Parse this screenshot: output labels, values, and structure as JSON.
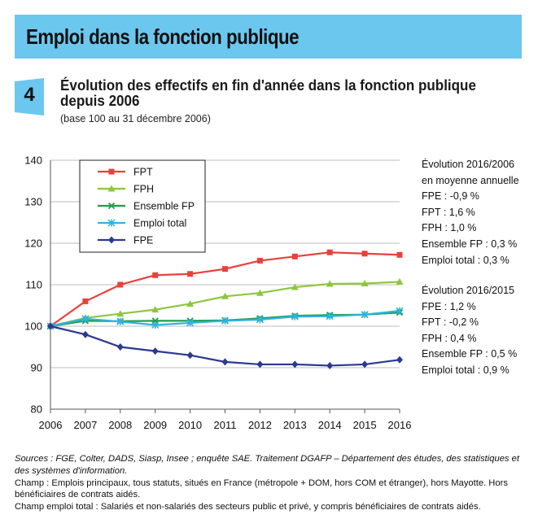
{
  "banner": {
    "title": "Emploi dans la fonction publique"
  },
  "figure": {
    "number": "4",
    "title": "Évolution des effectifs en fin d'année dans la fonction publique depuis 2006",
    "subtitle": "(base 100 au 31 décembre 2006)"
  },
  "notes": {
    "block1": [
      "Évolution 2016/2006",
      "en moyenne annuelle",
      "FPE : -0,9 %",
      "FPT : 1,6 %",
      "FPH : 1,0 %",
      "Ensemble FP : 0,3 %",
      "Emploi total : 0,3 %"
    ],
    "block2": [
      "Évolution 2016/2015",
      "FPE : 1,2 %",
      "FPT : -0,2 %",
      "FPH : 0,4 %",
      "Ensemble FP : 0,5 %",
      "Emploi total : 0,9 %"
    ]
  },
  "sources": {
    "line1": "Sources : FGE, Colter, DADS, Siasp, Insee ; enquête SAE. Traitement DGAFP – Département des études, des statistiques et des systèmes d'information.",
    "line2": "Champ : Emplois principaux, tous statuts, situés en France (métropole + DOM, hors COM et étranger), hors Mayotte. Hors bénéficiaires de contrats aidés.",
    "line3": "Champ emploi total : Salariés et non-salariés des secteurs public et privé, y compris bénéficiaires de contrats aidés."
  },
  "colors": {
    "banner": "#6cc7ee",
    "badge": "#6cc7ee",
    "FPT": "#e8413c",
    "FPH": "#8dc63f",
    "Ensemble FP": "#1e9e4a",
    "Emploi total": "#2fb3e0",
    "FPE": "#2b3990"
  },
  "chart_data": {
    "type": "line",
    "x": [
      2006,
      2007,
      2008,
      2009,
      2010,
      2011,
      2012,
      2013,
      2014,
      2015,
      2016
    ],
    "ylim": [
      80,
      140
    ],
    "yticks": [
      80,
      90,
      100,
      110,
      120,
      130,
      140
    ],
    "legend_position": "top-left",
    "series": [
      {
        "name": "FPT",
        "marker": "square",
        "values": [
          100,
          106,
          110,
          112.3,
          112.6,
          113.8,
          115.8,
          116.8,
          117.8,
          117.5,
          117.2
        ]
      },
      {
        "name": "FPH",
        "marker": "triangle",
        "values": [
          100,
          102,
          103,
          104,
          105.4,
          107.2,
          108,
          109.4,
          110.2,
          110.3,
          110.7
        ]
      },
      {
        "name": "Ensemble FP",
        "marker": "x",
        "values": [
          100,
          101.3,
          101.2,
          101.3,
          101.3,
          101.4,
          101.9,
          102.5,
          102.7,
          102.8,
          103.3
        ]
      },
      {
        "name": "Emploi total",
        "marker": "asterisk",
        "values": [
          100,
          101.8,
          101.1,
          100.3,
          100.8,
          101.3,
          101.6,
          102.3,
          102.4,
          102.8,
          103.7
        ]
      },
      {
        "name": "FPE",
        "marker": "diamond",
        "values": [
          100,
          98,
          95,
          94,
          93,
          91.4,
          90.8,
          90.8,
          90.5,
          90.8,
          91.9
        ]
      }
    ]
  }
}
